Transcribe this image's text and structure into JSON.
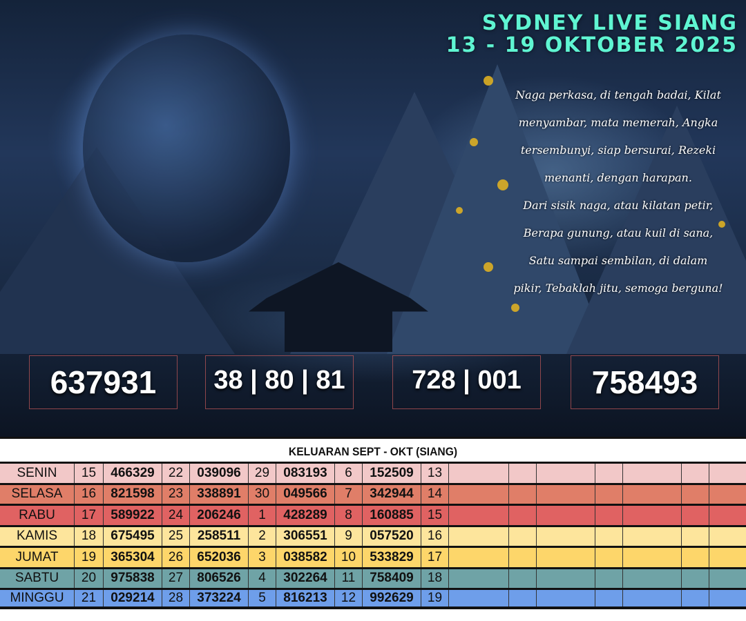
{
  "header": {
    "title_line1": "SYDNEY LIVE SIANG",
    "title_line2": "13 - 19 OKTOBER 2025"
  },
  "poem": [
    "Naga perkasa, di tengah badai, Kilat",
    "menyambar, mata memerah, Angka",
    "tersembunyi, siap bersurai, Rezeki",
    "menanti, dengan harapan.",
    "Dari sisik naga, atau kilatan petir,",
    "Berapa gunung, atau kuil di sana,",
    "Satu sampai sembilan, di dalam",
    "pikir, Tebaklah jitu, semoga berguna!"
  ],
  "predictions": [
    "637931",
    "38 | 80 | 81",
    "728 | 001",
    "758493"
  ],
  "table": {
    "title": "KELUARAN SEPT - OKT (SIANG)",
    "rows": [
      {
        "day": "SENIN",
        "color": "#f2c8c8",
        "cells": [
          "15",
          "466329",
          "22",
          "039096",
          "29",
          "083193",
          "6",
          "152509",
          "13"
        ]
      },
      {
        "day": "SELASA",
        "color": "#e07e68",
        "cells": [
          "16",
          "821598",
          "23",
          "338891",
          "30",
          "049566",
          "7",
          "342944",
          "14"
        ]
      },
      {
        "day": "RABU",
        "color": "#e06262",
        "cells": [
          "17",
          "589922",
          "24",
          "206246",
          "1",
          "428289",
          "8",
          "160885",
          "15"
        ]
      },
      {
        "day": "KAMIS",
        "color": "#fde59c",
        "cells": [
          "18",
          "675495",
          "25",
          "258511",
          "2",
          "306551",
          "9",
          "057520",
          "16"
        ]
      },
      {
        "day": "JUMAT",
        "color": "#fdd66a",
        "cells": [
          "19",
          "365304",
          "26",
          "652036",
          "3",
          "038582",
          "10",
          "533829",
          "17"
        ]
      },
      {
        "day": "SABTU",
        "color": "#6fa3a6",
        "cells": [
          "20",
          "975838",
          "27",
          "806526",
          "4",
          "302264",
          "11",
          "758409",
          "18"
        ]
      },
      {
        "day": "MINGGU",
        "color": "#6e9eea",
        "cells": [
          "21",
          "029214",
          "28",
          "373224",
          "5",
          "816213",
          "12",
          "992629",
          "19"
        ]
      }
    ]
  }
}
